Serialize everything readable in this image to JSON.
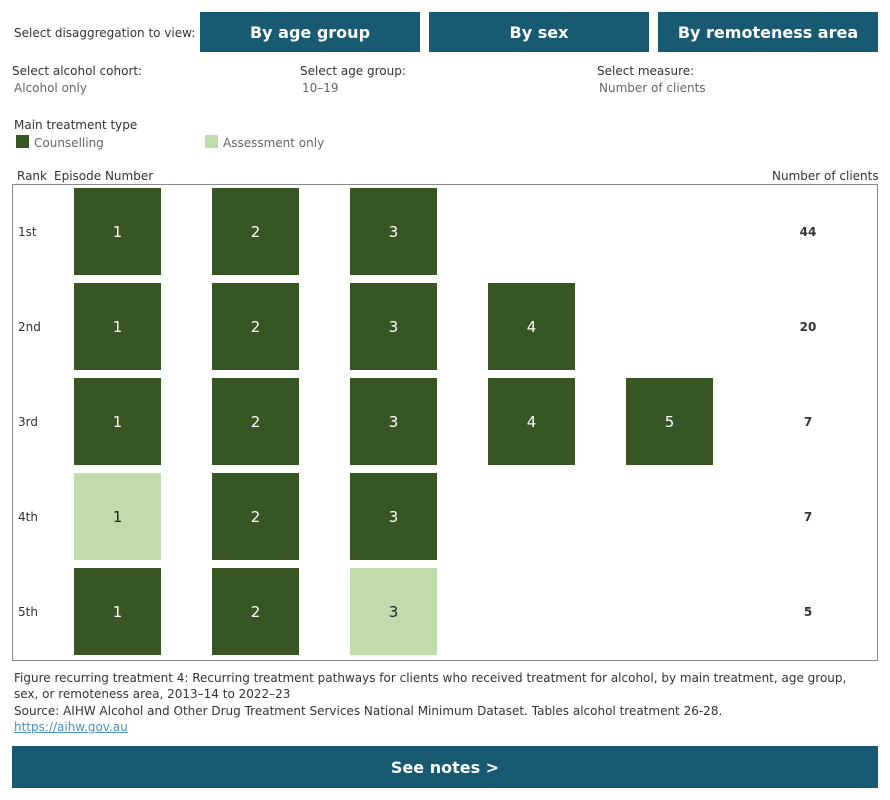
{
  "controls": {
    "label": "Select disaggregation to view:",
    "buttons": [
      "By age group",
      "By sex",
      "By remoteness area"
    ]
  },
  "filters": [
    {
      "label": "Select alcohol cohort:",
      "value": "Alcohol only"
    },
    {
      "label": "Select age group:",
      "value": "10–19"
    },
    {
      "label": "Select measure:",
      "value": "Number of clients"
    }
  ],
  "legend": {
    "title": "Main treatment type",
    "items": [
      {
        "name": "Counselling",
        "color": "#375624"
      },
      {
        "name": "Assessment only",
        "color": "#c0dcad"
      }
    ]
  },
  "table": {
    "headers": [
      "Rank",
      "Episode Number",
      "Number of clients"
    ],
    "rows": [
      {
        "rank": "1st",
        "episodes": [
          {
            "number": 1,
            "type": 0
          },
          {
            "number": 2,
            "type": 0
          },
          {
            "number": 3,
            "type": 0
          }
        ],
        "clients": 44
      },
      {
        "rank": "2nd",
        "episodes": [
          {
            "number": 1,
            "type": 0
          },
          {
            "number": 2,
            "type": 0
          },
          {
            "number": 3,
            "type": 0
          },
          {
            "number": 4,
            "type": 0
          }
        ],
        "clients": 20
      },
      {
        "rank": "3rd",
        "episodes": [
          {
            "number": 1,
            "type": 0
          },
          {
            "number": 2,
            "type": 0
          },
          {
            "number": 3,
            "type": 0
          },
          {
            "number": 4,
            "type": 0
          },
          {
            "number": 5,
            "type": 0
          }
        ],
        "clients": 7
      },
      {
        "rank": "4th",
        "episodes": [
          {
            "number": 1,
            "type": 1
          },
          {
            "number": 2,
            "type": 0
          },
          {
            "number": 3,
            "type": 0
          }
        ],
        "clients": 7
      },
      {
        "rank": "5th",
        "episodes": [
          {
            "number": 1,
            "type": 0
          },
          {
            "number": 2,
            "type": 0
          },
          {
            "number": 3,
            "type": 1
          }
        ],
        "clients": 5
      }
    ]
  },
  "footer": {
    "caption": "Figure recurring treatment 4: Recurring treatment pathways for clients who received treatment for alcohol, by main treatment, age group, sex, or remoteness area, 2013–14 to 2022–23",
    "source": "Source: AIHW Alcohol and Other Drug Treatment Services National Minimum Dataset. Tables alcohol treatment 26-28.",
    "link": "https://aihw.gov.au",
    "notes_button": "See notes >"
  }
}
